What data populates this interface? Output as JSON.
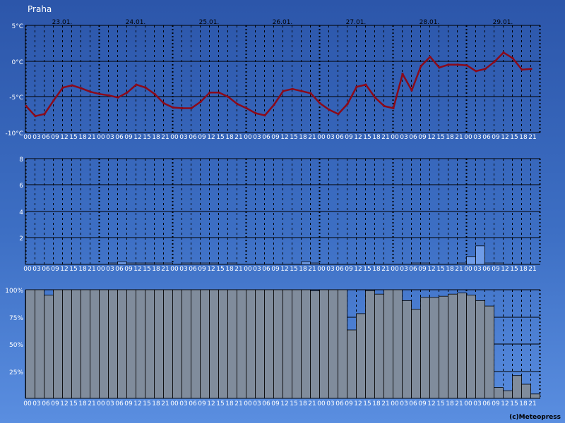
{
  "location": "Praha",
  "copyright": "(c)Meteopress",
  "colors": {
    "temperature_line": "#8b0a1a",
    "precip_fill": "#6f9ce8",
    "cloud_fill": "#808c9c",
    "grid_line": "#000000",
    "label_text": "#ffffff"
  },
  "day_labels": [
    "23.01.",
    "24.01.",
    "25.01.",
    "26.01.",
    "27.01.",
    "28.01.",
    "29.01."
  ],
  "hour_labels": [
    "00",
    "03",
    "06",
    "09",
    "12",
    "15",
    "18",
    "21"
  ],
  "chart_data": [
    {
      "type": "line",
      "id": "temperature",
      "y_ticks": [
        "5°C",
        "0°C",
        "-5°C",
        "-10°C"
      ],
      "ylim": [
        -10,
        5
      ],
      "x_hours_step": 3,
      "values": [
        -6.3,
        -7.7,
        -7.4,
        -5.5,
        -3.7,
        -3.4,
        -3.8,
        -4.3,
        -4.6,
        -4.8,
        -5.1,
        -4.4,
        -3.3,
        -3.7,
        -4.6,
        -5.9,
        -6.5,
        -6.6,
        -6.6,
        -5.7,
        -4.4,
        -4.4,
        -5.0,
        -6.0,
        -6.6,
        -7.3,
        -7.6,
        -6.1,
        -4.2,
        -3.9,
        -4.2,
        -4.5,
        -5.9,
        -6.8,
        -7.4,
        -6.0,
        -3.6,
        -3.3,
        -5.1,
        -6.3,
        -6.6,
        -1.8,
        -4.1,
        -0.7,
        0.6,
        -0.9,
        -0.5,
        -0.5,
        -0.6,
        -1.4,
        -1.1,
        -0.1,
        1.2,
        0.4,
        -1.2,
        -1.1
      ]
    },
    {
      "type": "bar",
      "id": "precipitation",
      "y_ticks": [
        "8",
        "6",
        "4",
        "2"
      ],
      "ylim": [
        0,
        8
      ],
      "values": [
        0,
        0,
        0,
        0,
        0,
        0,
        0,
        0,
        0,
        0.1,
        0.2,
        0.1,
        0.1,
        0.1,
        0.1,
        0.1,
        0,
        0.1,
        0.1,
        0.1,
        0.1,
        0,
        0.1,
        0,
        0,
        0,
        0,
        0,
        0,
        0,
        0.2,
        0.1,
        0,
        0,
        0,
        0,
        0,
        0,
        0,
        0,
        0,
        0,
        0.1,
        0.1,
        0,
        0,
        0,
        0.1,
        0.6,
        1.4,
        0.1,
        0.1,
        0,
        0,
        0,
        0
      ]
    },
    {
      "type": "bar",
      "id": "cloud_cover",
      "y_ticks": [
        "100%",
        "75%",
        "50%",
        "25%"
      ],
      "ylim": [
        0,
        100
      ],
      "values": [
        100,
        100,
        95,
        100,
        100,
        100,
        100,
        100,
        100,
        100,
        100,
        100,
        100,
        100,
        100,
        100,
        100,
        100,
        100,
        100,
        100,
        100,
        100,
        100,
        100,
        100,
        100,
        100,
        100,
        100,
        100,
        99,
        100,
        100,
        100,
        63,
        78,
        99,
        96,
        100,
        100,
        90,
        82,
        93,
        93,
        94,
        96,
        97,
        95,
        90,
        85,
        10,
        7,
        21,
        13,
        4
      ]
    }
  ]
}
